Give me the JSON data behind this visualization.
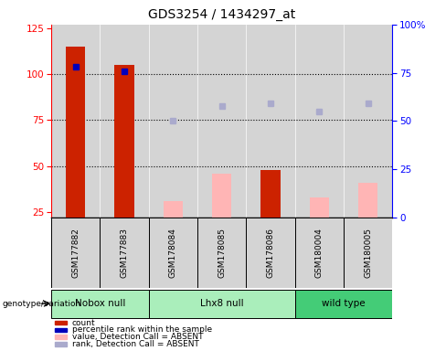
{
  "title": "GDS3254 / 1434297_at",
  "samples": [
    "GSM177882",
    "GSM177883",
    "GSM178084",
    "GSM178085",
    "GSM178086",
    "GSM180004",
    "GSM180005"
  ],
  "count_values": [
    115,
    105,
    null,
    null,
    48,
    null,
    null
  ],
  "count_absent_values": [
    null,
    null,
    31,
    46,
    null,
    33,
    41
  ],
  "percentile_present": [
    78,
    76,
    null,
    null,
    null,
    null,
    null
  ],
  "percentile_absent": [
    null,
    null,
    50,
    58,
    59,
    55,
    59
  ],
  "ylim_left": [
    22,
    127
  ],
  "ylim_right": [
    0,
    100
  ],
  "yticks_left": [
    25,
    50,
    75,
    100,
    125
  ],
  "yticks_right": [
    0,
    25,
    50,
    75,
    100
  ],
  "ytick_right_labels": [
    "0",
    "25",
    "50",
    "75",
    "100%"
  ],
  "bar_width": 0.4,
  "count_color": "#cc2200",
  "count_absent_color": "#ffb5b5",
  "percentile_color": "#0000bb",
  "percentile_absent_color": "#aaaacc",
  "group_info": [
    {
      "label": "Nobox null",
      "start": 0,
      "end": 1,
      "color": "#aaeebb"
    },
    {
      "label": "Lhx8 null",
      "start": 2,
      "end": 4,
      "color": "#aaeebb"
    },
    {
      "label": "wild type",
      "start": 5,
      "end": 6,
      "color": "#44cc77"
    }
  ],
  "legend_items": [
    {
      "label": "count",
      "color": "#cc2200"
    },
    {
      "label": "percentile rank within the sample",
      "color": "#0000bb"
    },
    {
      "label": "value, Detection Call = ABSENT",
      "color": "#ffb5b5"
    },
    {
      "label": "rank, Detection Call = ABSENT",
      "color": "#aaaacc"
    }
  ],
  "sample_bg_color": "#d4d4d4",
  "plot_bg_color": "#e8e8e8",
  "fig_bg_color": "#ffffff"
}
